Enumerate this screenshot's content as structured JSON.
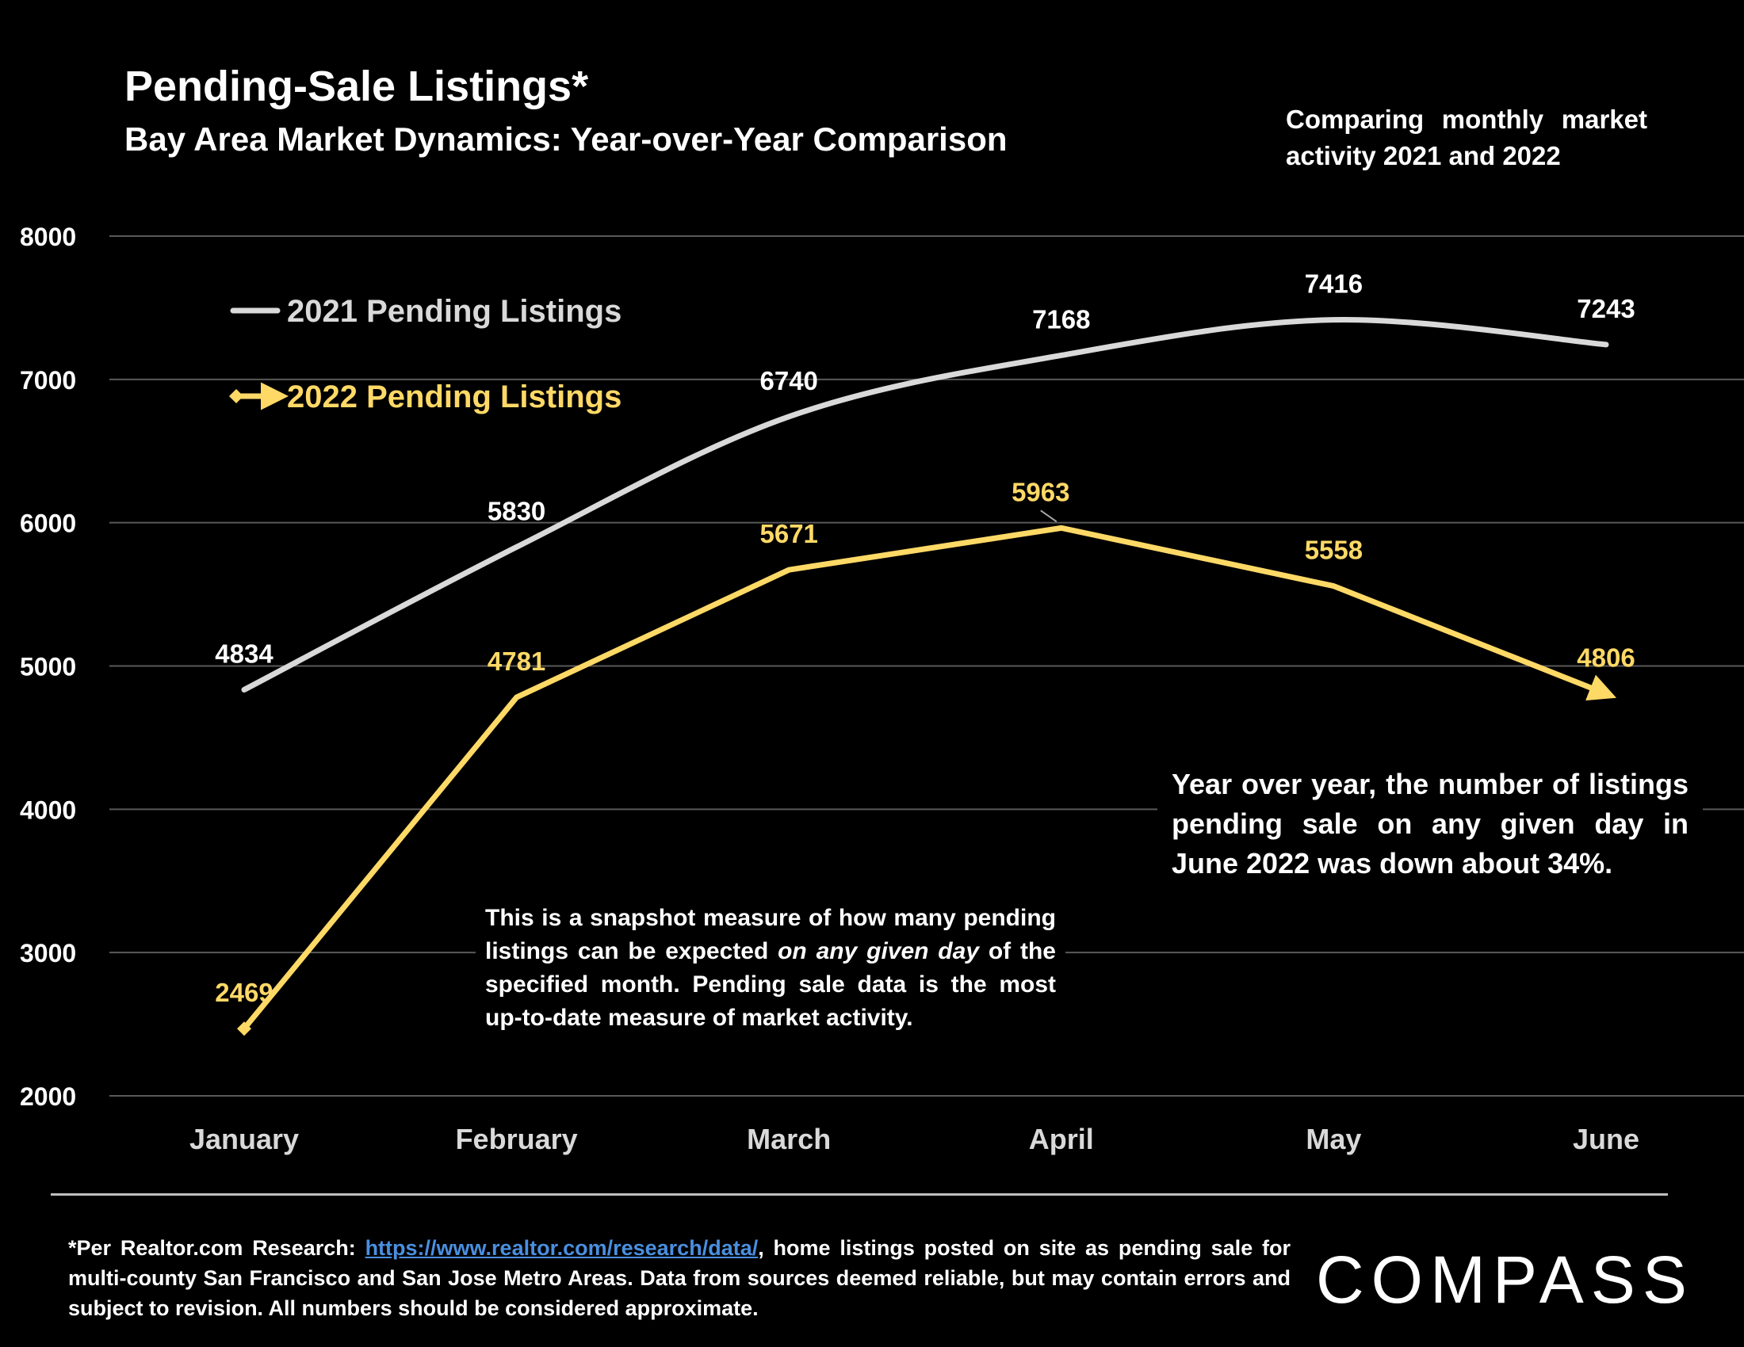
{
  "header": {
    "title": "Pending-Sale Listings*",
    "subtitle": "Bay Area Market Dynamics: Year-over-Year Comparison",
    "note": "Comparing monthly market activity 2021 and 2022"
  },
  "annotations": {
    "snapshot_before": "This is a snapshot measure of how many pending listings can be expected ",
    "snapshot_italic": "on any given day",
    "snapshot_after": " of the specified month. Pending sale data is the most up-to-date measure of market activity.",
    "yoy": "Year over year, the number of listings pending sale on any given day in June 2022 was down about 34%."
  },
  "footer": {
    "prefix": "*Per Realtor.com Research:  ",
    "link": "https://www.realtor.com/research/data/",
    "suffix": ", home listings posted on site as pending sale for multi-county San Francisco and San Jose Metro Areas. Data from sources deemed reliable, but may contain errors and subject to revision. All numbers should be considered approximate.",
    "logo": "COMPASS"
  },
  "colors": {
    "background": "#000000",
    "series_2021": "#d9d9d9",
    "series_2022": "#ffd966",
    "gridline": "#595959",
    "link": "#4a8fe0"
  },
  "chart_data": {
    "type": "line",
    "categories": [
      "January",
      "February",
      "March",
      "April",
      "May",
      "June"
    ],
    "series": [
      {
        "name": "2021 Pending Listings",
        "values": [
          4834,
          5830,
          6740,
          7168,
          7416,
          7243
        ],
        "color": "#d9d9d9",
        "marker": "none",
        "smooth": true
      },
      {
        "name": "2022 Pending Listings",
        "values": [
          2469,
          4781,
          5671,
          5963,
          5558,
          4806
        ],
        "color": "#ffd966",
        "marker": "diamond-arrow",
        "smooth": false
      }
    ],
    "ylim": [
      2000,
      8000
    ],
    "yticks": [
      2000,
      3000,
      4000,
      5000,
      6000,
      7000,
      8000
    ],
    "grid": true,
    "legend_position": "top-left",
    "xlabel": "",
    "ylabel": ""
  }
}
